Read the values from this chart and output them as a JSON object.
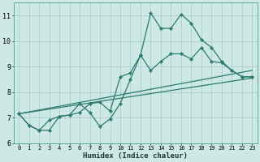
{
  "xlabel": "Humidex (Indice chaleur)",
  "xlim": [
    -0.5,
    23.5
  ],
  "ylim": [
    6.0,
    11.5
  ],
  "yticks": [
    6,
    7,
    8,
    9,
    10,
    11
  ],
  "xticks": [
    0,
    1,
    2,
    3,
    4,
    5,
    6,
    7,
    8,
    9,
    10,
    11,
    12,
    13,
    14,
    15,
    16,
    17,
    18,
    19,
    20,
    21,
    22,
    23
  ],
  "bg_color": "#cde8e5",
  "grid_color": "#a8cfcc",
  "line_color": "#2d7a6e",
  "lines": [
    {
      "x": [
        0,
        1,
        2,
        3,
        4,
        5,
        6,
        7,
        8,
        9,
        10,
        11,
        12,
        13,
        14,
        15,
        16,
        17,
        18,
        19,
        20,
        21,
        22,
        23
      ],
      "y": [
        7.15,
        6.7,
        6.5,
        6.5,
        7.05,
        7.1,
        7.55,
        7.2,
        6.65,
        6.95,
        7.55,
        8.5,
        9.45,
        11.1,
        10.5,
        10.5,
        11.05,
        10.7,
        10.05,
        9.75,
        9.2,
        8.85,
        8.6,
        8.6
      ],
      "marker": true
    },
    {
      "x": [
        0,
        1,
        2,
        3,
        4,
        5,
        6,
        7,
        8,
        9,
        10,
        11,
        12,
        13,
        14,
        15,
        16,
        17,
        18,
        19,
        20,
        21,
        22,
        23
      ],
      "y": [
        7.15,
        6.7,
        6.5,
        6.9,
        7.05,
        7.1,
        7.2,
        7.55,
        7.6,
        7.25,
        8.6,
        8.75,
        9.45,
        8.85,
        9.2,
        9.5,
        9.5,
        9.3,
        9.75,
        9.2,
        9.15,
        8.85,
        8.6,
        8.6
      ],
      "marker": true
    },
    {
      "x": [
        0,
        23
      ],
      "y": [
        7.15,
        8.55
      ],
      "marker": false
    },
    {
      "x": [
        0,
        23
      ],
      "y": [
        7.15,
        8.85
      ],
      "marker": false
    }
  ]
}
